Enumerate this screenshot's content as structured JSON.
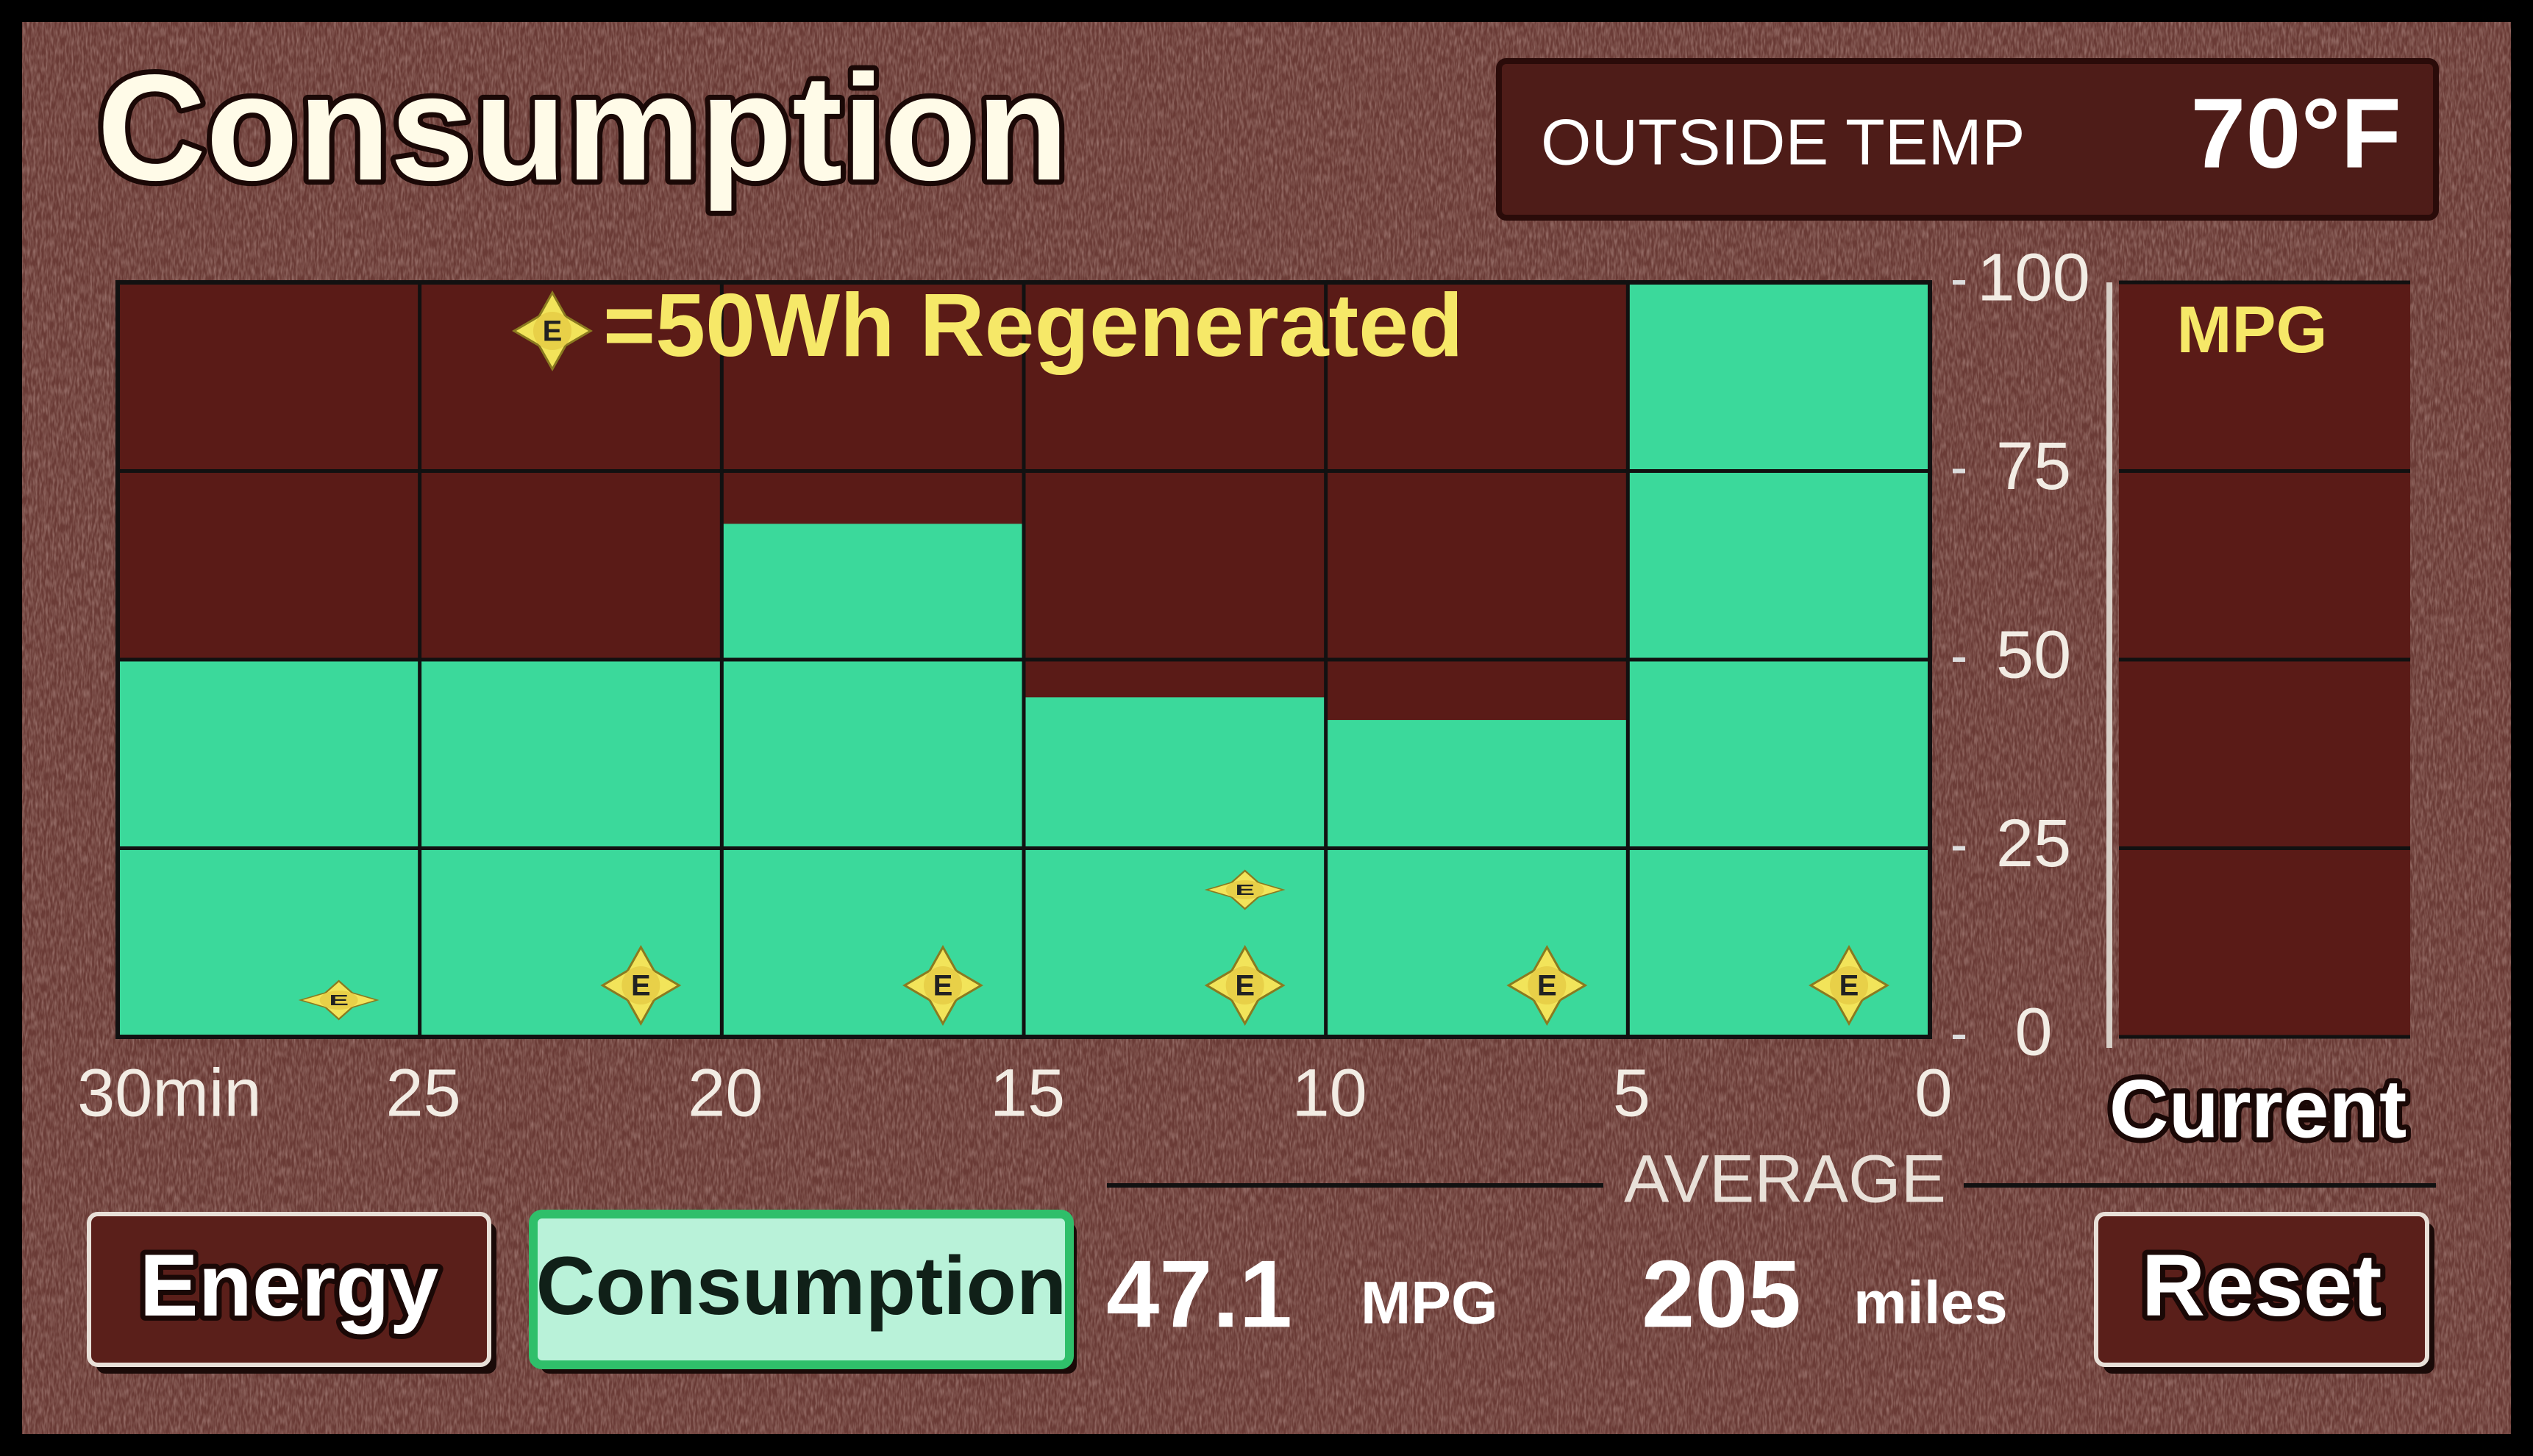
{
  "header": {
    "title": "Consumption",
    "outside_temp_label": "OUTSIDE TEMP",
    "outside_temp_value": "70°F"
  },
  "chart_data": {
    "type": "histogram",
    "bins": [
      30,
      25,
      20,
      15,
      10,
      5,
      0
    ],
    "values": [
      50,
      50,
      68,
      45,
      42,
      100
    ],
    "color": "#3bd99b",
    "xlim": [
      30,
      0
    ],
    "xticks": [
      {
        "value": 30,
        "label": "30min"
      },
      25,
      20,
      15,
      10,
      5,
      0
    ],
    "ylim": [
      0,
      100
    ],
    "yticks": [
      0,
      25,
      50,
      75,
      100
    ],
    "grid": true,
    "regenerated": {
      "legend": "=50Wh Regenerated",
      "icon_label": "E",
      "values": [
        0.5,
        1,
        1,
        1.5,
        1,
        1
      ]
    },
    "current": {
      "axis_label": "MPG",
      "label": "Current"
    }
  },
  "average": {
    "label": "AVERAGE",
    "mpg": 47.1,
    "mpg_unit": "MPG",
    "distance": 205,
    "distance_unit": "miles"
  },
  "buttons": [
    {
      "label": "Energy",
      "active": false
    },
    {
      "label": "Consumption",
      "active": true
    },
    {
      "label": "Reset",
      "active": false
    }
  ]
}
